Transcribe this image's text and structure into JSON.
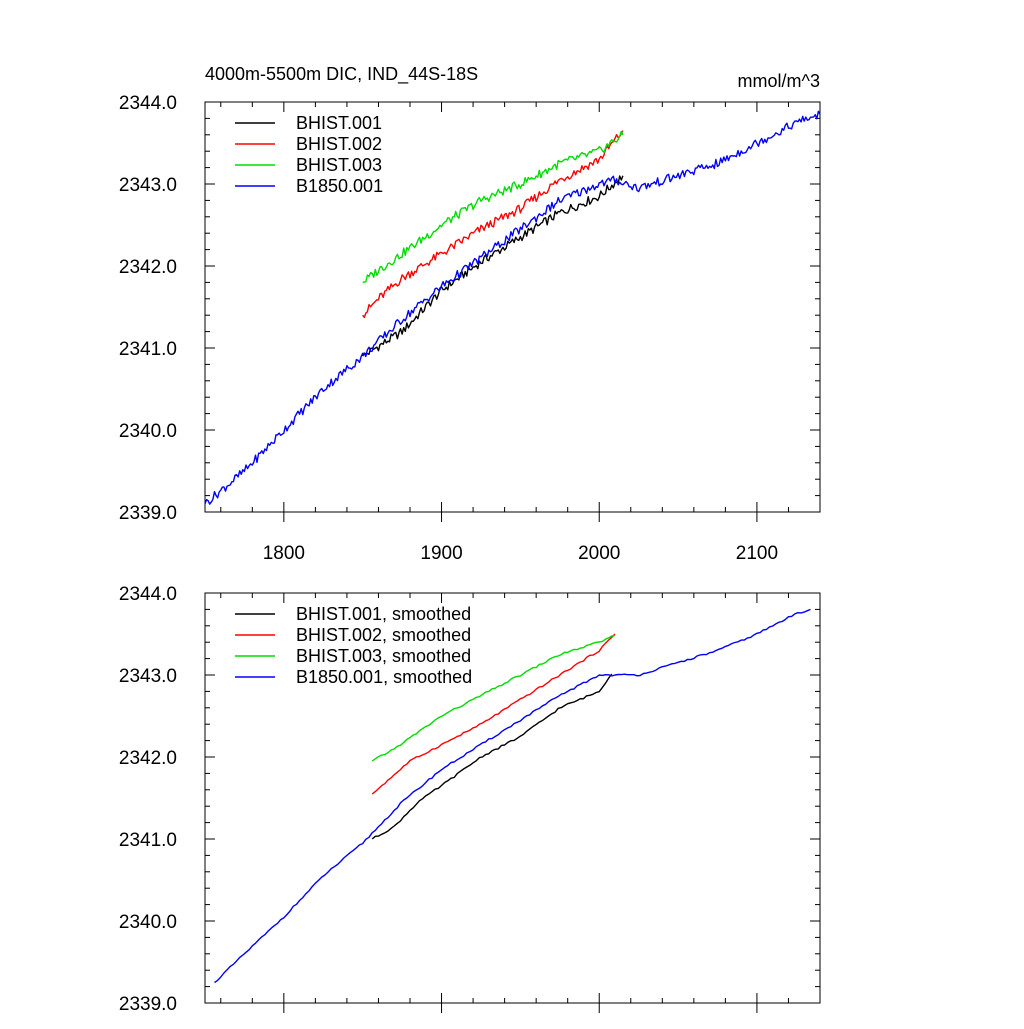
{
  "chart_data": [
    {
      "type": "line",
      "title": "4000m-5500m DIC, IND_44S-18S",
      "units": "mmol/m^3",
      "xlim": [
        1750,
        2140
      ],
      "ylim": [
        2339.0,
        2344.0
      ],
      "x_ticks": [
        1800,
        1900,
        2000,
        2100
      ],
      "x_tick_labels": [
        "1800",
        "1900",
        "2000",
        "2100"
      ],
      "y_ticks": [
        2339.0,
        2340.0,
        2341.0,
        2342.0,
        2343.0,
        2344.0
      ],
      "y_tick_labels": [
        "2339.0",
        "2340.0",
        "2341.0",
        "2342.0",
        "2343.0",
        "2344.0"
      ],
      "legend_position": "top-left",
      "series": [
        {
          "name": "BHIST.001",
          "color": "#000000",
          "x": [
            1850,
            1875,
            1900,
            1925,
            1950,
            1975,
            2000,
            2015
          ],
          "values": [
            2340.9,
            2341.2,
            2341.7,
            2342.05,
            2342.35,
            2342.65,
            2342.85,
            2343.1
          ]
        },
        {
          "name": "BHIST.002",
          "color": "#ff0000",
          "x": [
            1850,
            1860,
            1875,
            1900,
            1925,
            1950,
            1975,
            2000,
            2015
          ],
          "values": [
            2341.4,
            2341.6,
            2341.85,
            2342.15,
            2342.45,
            2342.7,
            2343.05,
            2343.3,
            2343.65
          ]
        },
        {
          "name": "BHIST.003",
          "color": "#00dd00",
          "x": [
            1850,
            1860,
            1875,
            1900,
            1925,
            1950,
            1975,
            2000,
            2015
          ],
          "values": [
            2341.8,
            2341.95,
            2342.15,
            2342.5,
            2342.8,
            2343.0,
            2343.25,
            2343.4,
            2343.6
          ]
        },
        {
          "name": "B1850.001",
          "color": "#0000ff",
          "x": [
            1750,
            1775,
            1800,
            1825,
            1850,
            1875,
            1900,
            1925,
            1950,
            1975,
            2000,
            2010,
            2025,
            2050,
            2075,
            2100,
            2125,
            2140
          ],
          "values": [
            2339.1,
            2339.5,
            2340.0,
            2340.5,
            2340.9,
            2341.35,
            2341.75,
            2342.1,
            2342.45,
            2342.8,
            2343.0,
            2343.05,
            2342.95,
            2343.1,
            2343.25,
            2343.5,
            2343.75,
            2343.85
          ]
        }
      ]
    },
    {
      "type": "line",
      "title": "",
      "xlim": [
        1750,
        2140
      ],
      "ylim": [
        2339.0,
        2344.0
      ],
      "x_ticks": [
        1800,
        1900,
        2000,
        2100
      ],
      "x_tick_labels": [],
      "y_ticks": [
        2339.0,
        2340.0,
        2341.0,
        2342.0,
        2343.0,
        2344.0
      ],
      "y_tick_labels": [
        "2339.0",
        "2340.0",
        "2341.0",
        "2342.0",
        "2343.0",
        "2344.0"
      ],
      "legend_position": "top-left",
      "series": [
        {
          "name": "BHIST.001, smoothed",
          "color": "#000000",
          "x": [
            1856,
            1870,
            1885,
            1900,
            1925,
            1950,
            1975,
            2000,
            2009
          ],
          "values": [
            2341.0,
            2341.15,
            2341.45,
            2341.65,
            2342.0,
            2342.25,
            2342.6,
            2342.8,
            2343.05
          ]
        },
        {
          "name": "BHIST.002, smoothed",
          "color": "#ff0000",
          "x": [
            1856,
            1865,
            1880,
            1900,
            1925,
            1950,
            1975,
            2000,
            2010
          ],
          "values": [
            2341.55,
            2341.7,
            2341.95,
            2342.15,
            2342.4,
            2342.7,
            2343.0,
            2343.3,
            2343.5
          ]
        },
        {
          "name": "BHIST.003, smoothed",
          "color": "#00dd00",
          "x": [
            1856,
            1870,
            1885,
            1900,
            1925,
            1950,
            1975,
            2000,
            2010
          ],
          "values": [
            2341.95,
            2342.1,
            2342.3,
            2342.5,
            2342.75,
            2343.0,
            2343.25,
            2343.4,
            2343.48
          ]
        },
        {
          "name": "B1850.001, smoothed",
          "color": "#0000ff",
          "x": [
            1756,
            1775,
            1800,
            1825,
            1850,
            1875,
            1900,
            1925,
            1950,
            1975,
            2000,
            2010,
            2025,
            2050,
            2075,
            2100,
            2125,
            2134
          ],
          "values": [
            2339.25,
            2339.6,
            2340.05,
            2340.55,
            2340.95,
            2341.45,
            2341.85,
            2342.15,
            2342.45,
            2342.75,
            2343.0,
            2343.0,
            2343.0,
            2343.15,
            2343.3,
            2343.5,
            2343.75,
            2343.8
          ]
        }
      ]
    }
  ]
}
